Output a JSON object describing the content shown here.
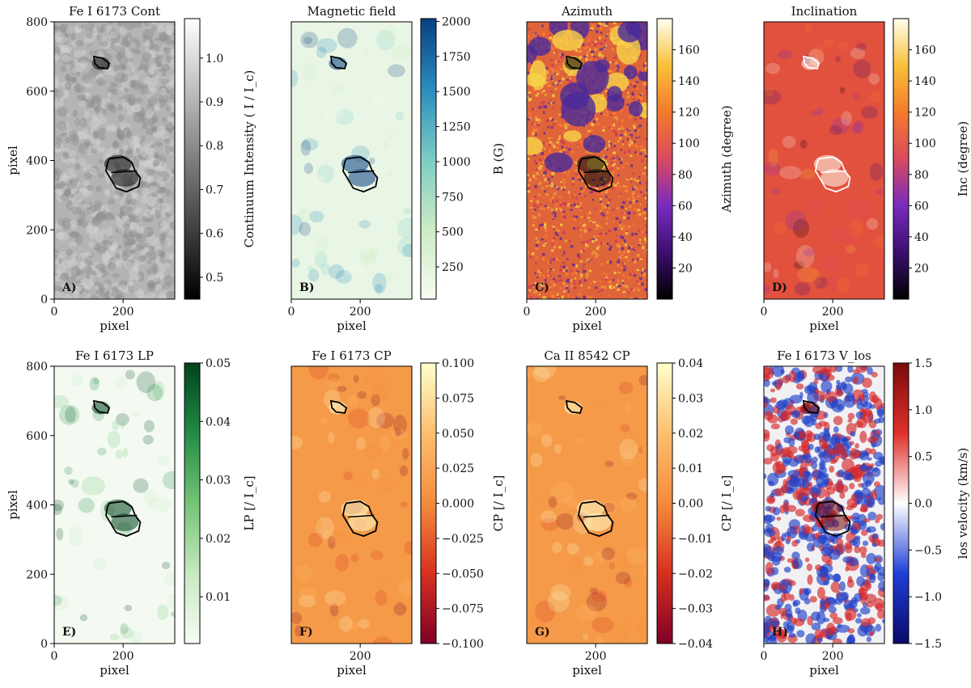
{
  "figure": {
    "panels": [
      {
        "letter": "A)",
        "title": "Fe I 6173 Cont",
        "xlabel": "pixel",
        "ylabel": "pixel",
        "xticks": [
          "0",
          "200"
        ],
        "yticks": [
          "0",
          "200",
          "400",
          "600",
          "800"
        ],
        "colorbar": {
          "label": "Continuum Intensity ( I / I_c)",
          "ticks": [
            "0.5",
            "0.6",
            "0.7",
            "0.8",
            "0.9",
            "1.0"
          ],
          "range": [
            0.45,
            1.09
          ],
          "tick_values": [
            0.5,
            0.6,
            0.7,
            0.8,
            0.9,
            1.0
          ],
          "colors": [
            "#000000",
            "#ffffff"
          ]
        },
        "map": {
          "base": "#b4b4b4",
          "pattern": "granulation",
          "contour_color": "#000000"
        }
      },
      {
        "letter": "B)",
        "title": "Magnetic field",
        "xlabel": "pixel",
        "ylabel": "",
        "xticks": [
          "0",
          "200"
        ],
        "yticks": [],
        "colorbar": {
          "label": "B (G)",
          "ticks": [
            "250",
            "500",
            "750",
            "1000",
            "1250",
            "1500",
            "1750",
            "2000"
          ],
          "range": [
            20,
            2020
          ],
          "tick_values": [
            250,
            500,
            750,
            1000,
            1250,
            1500,
            1750,
            2000
          ],
          "colors": [
            "#f7fcf0",
            "#ccebc5",
            "#7bccc4",
            "#2b8cbe",
            "#084081"
          ]
        },
        "map": {
          "base": "#e9f6e6",
          "pattern": "smooth",
          "contour_color": "#000000"
        }
      },
      {
        "letter": "C)",
        "title": "Azimuth",
        "xlabel": "pixel",
        "ylabel": "",
        "xticks": [
          "0",
          "200"
        ],
        "yticks": [],
        "colorbar": {
          "label": "Azimuth (degree)",
          "ticks": [
            "20",
            "40",
            "60",
            "80",
            "100",
            "120",
            "140",
            "160"
          ],
          "range": [
            0,
            180
          ],
          "tick_values": [
            20,
            40,
            60,
            80,
            100,
            120,
            140,
            160
          ],
          "colors": [
            "#000000",
            "#3b0f70",
            "#7a2bbf",
            "#d94a5f",
            "#f47a2c",
            "#f9c13a",
            "#fffff0"
          ]
        },
        "map": {
          "base": "#e0643a",
          "pattern": "noisy",
          "contour_color": "#000000"
        }
      },
      {
        "letter": "D)",
        "title": "Inclination",
        "xlabel": "pixel",
        "ylabel": "",
        "xticks": [
          "0",
          "200"
        ],
        "yticks": [],
        "colorbar": {
          "label": "Inc (degree)",
          "ticks": [
            "20",
            "40",
            "60",
            "80",
            "100",
            "120",
            "140",
            "160"
          ],
          "range": [
            0,
            180
          ],
          "tick_values": [
            20,
            40,
            60,
            80,
            100,
            120,
            140,
            160
          ],
          "colors": [
            "#000000",
            "#3b0f70",
            "#7a2bbf",
            "#d94a5f",
            "#f47a2c",
            "#f9c13a",
            "#fffff0"
          ]
        },
        "map": {
          "base": "#e2503e",
          "pattern": "smooth",
          "contour_color": "#ffffff"
        }
      },
      {
        "letter": "E)",
        "title": "Fe I 6173 LP",
        "xlabel": "pixel",
        "ylabel": "pixel",
        "xticks": [
          "0",
          "200"
        ],
        "yticks": [
          "0",
          "200",
          "400",
          "600",
          "800"
        ],
        "colorbar": {
          "label": "LP [/ I_c]",
          "ticks": [
            "0.01",
            "0.02",
            "0.03",
            "0.04",
            "0.05"
          ],
          "range": [
            0.002,
            0.05
          ],
          "tick_values": [
            0.01,
            0.02,
            0.03,
            0.04,
            0.05
          ],
          "colors": [
            "#f7fcf5",
            "#c7e9c0",
            "#74c476",
            "#238b45",
            "#00441b"
          ]
        },
        "map": {
          "base": "#f4faf2",
          "pattern": "smooth",
          "contour_color": "#000000"
        }
      },
      {
        "letter": "F)",
        "title": "Fe I 6173 CP",
        "xlabel": "pixel",
        "ylabel": "",
        "xticks": [
          "200"
        ],
        "yticks": [],
        "colorbar": {
          "label": "CP [/ I_c]",
          "ticks": [
            "−0.100",
            "−0.075",
            "−0.050",
            "−0.025",
            "0.000",
            "0.025",
            "0.050",
            "0.075",
            "0.100"
          ],
          "range": [
            -0.1,
            0.1
          ],
          "tick_values": [
            -0.1,
            -0.075,
            -0.05,
            -0.025,
            0,
            0.025,
            0.05,
            0.075,
            0.1
          ],
          "colors": [
            "#7f0026",
            "#d7301f",
            "#f48b3c",
            "#fdbf6f",
            "#ffffcc"
          ]
        },
        "map": {
          "base": "#f59a48",
          "pattern": "smooth",
          "contour_color": "#000000"
        }
      },
      {
        "letter": "G)",
        "title": "Ca II 8542 CP",
        "xlabel": "pixel",
        "ylabel": "",
        "xticks": [
          "200"
        ],
        "yticks": [],
        "colorbar": {
          "label": "CP [/ I_c]",
          "ticks": [
            "−0.04",
            "−0.03",
            "−0.02",
            "−0.01",
            "0.00",
            "0.01",
            "0.02",
            "0.03",
            "0.04"
          ],
          "range": [
            -0.04,
            0.04
          ],
          "tick_values": [
            -0.04,
            -0.03,
            -0.02,
            -0.01,
            0,
            0.01,
            0.02,
            0.03,
            0.04
          ],
          "colors": [
            "#7f0026",
            "#d7301f",
            "#f48b3c",
            "#fdbf6f",
            "#ffffcc"
          ]
        },
        "map": {
          "base": "#f59a48",
          "pattern": "smooth",
          "contour_color": "#000000"
        }
      },
      {
        "letter": "H)",
        "title": "Fe I 6173 V_los",
        "xlabel": "pixel",
        "ylabel": "",
        "xticks": [
          "0",
          "200"
        ],
        "yticks": [],
        "colorbar": {
          "label": "los velocity (km/s)",
          "ticks": [
            "−1.5",
            "−1.0",
            "−0.5",
            "0.0",
            "0.5",
            "1.0",
            "1.5"
          ],
          "range": [
            -1.5,
            1.5
          ],
          "tick_values": [
            -1.5,
            -1.0,
            -0.5,
            0,
            0.5,
            1.0,
            1.5
          ],
          "colors": [
            "#0a0a6b",
            "#1f3fd6",
            "#ffffff",
            "#e0302a",
            "#7a0a0a"
          ]
        },
        "map": {
          "base": "#f1f1f4",
          "pattern": "mottled",
          "contour_color": "#000000"
        }
      }
    ]
  }
}
